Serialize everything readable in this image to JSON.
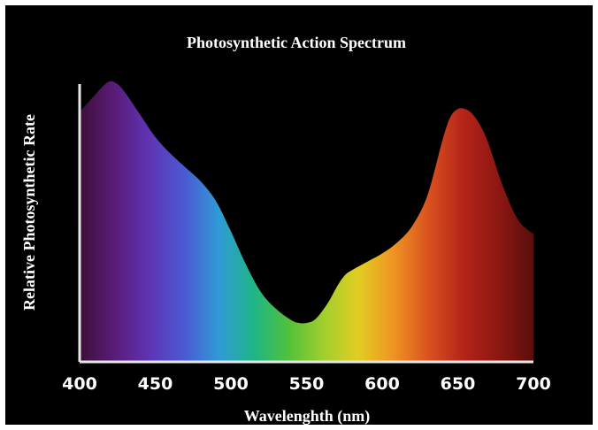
{
  "chart_data": {
    "type": "area",
    "title": "Photosynthetic Action Spectrum",
    "xlabel": "Wavelenghth (nm)",
    "ylabel": "Relative Photosynthetic Rate",
    "xlim": [
      400,
      700
    ],
    "ylim": [
      0,
      100
    ],
    "x_ticks": [
      400,
      450,
      500,
      550,
      600,
      650,
      700
    ],
    "x_tick_labels": [
      "400",
      "450",
      "500",
      "550",
      "600",
      "650",
      "700"
    ],
    "grid": false,
    "legend": "none",
    "series": [
      {
        "x": [
          400,
          405,
          410,
          415,
          420,
          425,
          430,
          440,
          450,
          460,
          470,
          480,
          490,
          500,
          510,
          520,
          530,
          540,
          545,
          550,
          555,
          560,
          565,
          570,
          575,
          580,
          590,
          600,
          610,
          620,
          630,
          640,
          645,
          650,
          655,
          660,
          665,
          670,
          680,
          690,
          700
        ],
        "y": [
          90,
          93,
          96,
          99,
          101,
          100,
          97,
          89,
          81,
          75,
          70,
          65,
          58,
          47,
          35,
          25,
          19,
          15,
          14,
          14,
          15,
          18,
          22,
          27,
          31,
          33,
          36,
          39,
          43,
          49,
          60,
          80,
          88,
          91,
          91,
          89,
          85,
          79,
          63,
          51,
          46
        ]
      }
    ],
    "colors": {
      "background": "#000000",
      "axis": "#e6e6e6",
      "text": "#ffffff",
      "spectrum_stops": [
        "#3c1038",
        "#5a1c78",
        "#5e34b4",
        "#4a5ad2",
        "#2f9bd6",
        "#1fb585",
        "#52c13a",
        "#a2cf2d",
        "#e2cd22",
        "#ef9323",
        "#d9511f",
        "#b42419",
        "#8d1712",
        "#5a0e0b"
      ]
    }
  }
}
